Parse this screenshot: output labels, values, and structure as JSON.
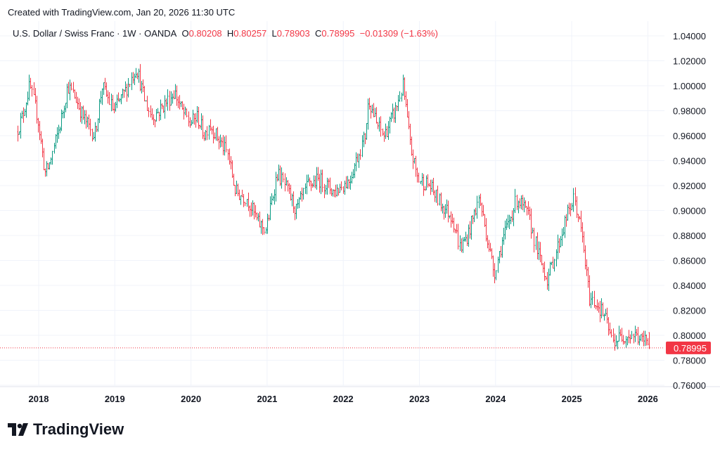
{
  "credit": "Created with TradingView.com, Jan 20, 2026 11:30 UTC",
  "legend": {
    "symbol": "U.S. Dollar / Swiss Franc · 1W · OANDA",
    "o_label": "O",
    "o": "0.80208",
    "h_label": "H",
    "h": "0.80257",
    "l_label": "L",
    "l": "0.78903",
    "c_label": "C",
    "c": "0.78995",
    "change": "−0.01309 (−1.63%)"
  },
  "logo_text": "TradingView",
  "colors": {
    "up": "#089981",
    "down": "#F23645",
    "grid": "#F0F3FA",
    "text": "#131722"
  },
  "chart_data": {
    "type": "ohlc",
    "title": "U.S. Dollar / Swiss Franc · 1W · OANDA",
    "interval": "1W",
    "ylim": [
      0.75,
      1.045
    ],
    "y_ticks": [
      "0.76000",
      "0.78000",
      "0.80000",
      "0.82000",
      "0.84000",
      "0.86000",
      "0.88000",
      "0.90000",
      "0.92000",
      "0.94000",
      "0.96000",
      "0.98000",
      "1.00000",
      "1.02000",
      "1.04000"
    ],
    "x_ticks": [
      "2018",
      "2019",
      "2020",
      "2021",
      "2022",
      "2023",
      "2024",
      "2025",
      "2026"
    ],
    "last_price": "0.78995",
    "last_bar": {
      "open": 0.80208,
      "high": 0.80257,
      "low": 0.78903,
      "close": 0.78995
    },
    "approx_close_path": [
      [
        2017.7,
        0.96
      ],
      [
        2017.8,
        0.975
      ],
      [
        2017.9,
        1.0
      ],
      [
        2018.0,
        0.975
      ],
      [
        2018.1,
        0.93
      ],
      [
        2018.15,
        0.935
      ],
      [
        2018.3,
        0.97
      ],
      [
        2018.4,
        1.0
      ],
      [
        2018.5,
        0.99
      ],
      [
        2018.6,
        0.975
      ],
      [
        2018.75,
        0.96
      ],
      [
        2018.85,
        1.0
      ],
      [
        2019.0,
        0.98
      ],
      [
        2019.15,
        0.995
      ],
      [
        2019.3,
        1.015
      ],
      [
        2019.4,
        0.99
      ],
      [
        2019.5,
        0.975
      ],
      [
        2019.6,
        0.98
      ],
      [
        2019.8,
        0.995
      ],
      [
        2019.9,
        0.98
      ],
      [
        2020.0,
        0.97
      ],
      [
        2020.1,
        0.975
      ],
      [
        2020.2,
        0.96
      ],
      [
        2020.25,
        0.97
      ],
      [
        2020.5,
        0.945
      ],
      [
        2020.6,
        0.915
      ],
      [
        2020.75,
        0.91
      ],
      [
        2020.9,
        0.89
      ],
      [
        2021.0,
        0.885
      ],
      [
        2021.15,
        0.93
      ],
      [
        2021.25,
        0.92
      ],
      [
        2021.4,
        0.9
      ],
      [
        2021.55,
        0.92
      ],
      [
        2021.7,
        0.925
      ],
      [
        2021.9,
        0.915
      ],
      [
        2022.0,
        0.92
      ],
      [
        2022.1,
        0.925
      ],
      [
        2022.3,
        0.96
      ],
      [
        2022.35,
        0.99
      ],
      [
        2022.45,
        0.97
      ],
      [
        2022.55,
        0.96
      ],
      [
        2022.7,
        0.98
      ],
      [
        2022.8,
        1.0
      ],
      [
        2022.9,
        0.95
      ],
      [
        2023.0,
        0.925
      ],
      [
        2023.15,
        0.92
      ],
      [
        2023.3,
        0.905
      ],
      [
        2023.45,
        0.895
      ],
      [
        2023.55,
        0.87
      ],
      [
        2023.65,
        0.88
      ],
      [
        2023.8,
        0.91
      ],
      [
        2023.9,
        0.88
      ],
      [
        2024.0,
        0.85
      ],
      [
        2024.1,
        0.875
      ],
      [
        2024.3,
        0.91
      ],
      [
        2024.45,
        0.895
      ],
      [
        2024.6,
        0.86
      ],
      [
        2024.7,
        0.845
      ],
      [
        2024.8,
        0.865
      ],
      [
        2024.95,
        0.895
      ],
      [
        2025.05,
        0.91
      ],
      [
        2025.15,
        0.88
      ],
      [
        2025.25,
        0.83
      ],
      [
        2025.35,
        0.825
      ],
      [
        2025.45,
        0.815
      ],
      [
        2025.55,
        0.795
      ],
      [
        2025.7,
        0.8
      ],
      [
        2025.85,
        0.8
      ],
      [
        2025.95,
        0.795
      ],
      [
        2026.05,
        0.7995
      ]
    ]
  }
}
